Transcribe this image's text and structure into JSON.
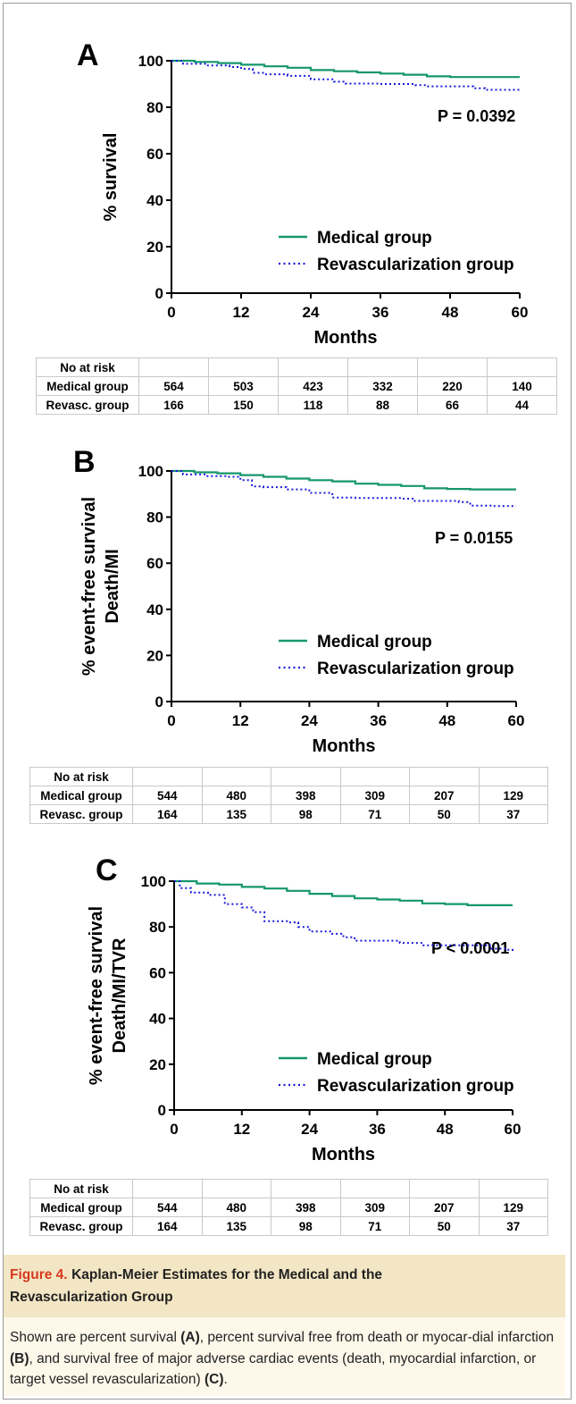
{
  "chart_data": [
    {
      "type": "line",
      "panel": "A",
      "ylabel": [
        "% survival"
      ],
      "xlabel": "Months",
      "xlim": [
        0,
        60
      ],
      "ylim": [
        0,
        100
      ],
      "xticks": [
        0,
        12,
        24,
        36,
        48,
        60
      ],
      "yticks": [
        0,
        20,
        40,
        60,
        80,
        100
      ],
      "annotation": "P  = 0.0392",
      "legend_position": "bottom-right",
      "series": [
        {
          "name": "Medical group",
          "color": "#15966b",
          "style": "solid",
          "x": [
            0,
            4,
            8,
            12,
            16,
            20,
            24,
            28,
            32,
            36,
            40,
            44,
            48,
            52,
            56,
            60
          ],
          "y": [
            100,
            99.5,
            99,
            98.3,
            97.6,
            97,
            96,
            95.5,
            95,
            94.5,
            94,
            93.3,
            93,
            93,
            93,
            93
          ]
        },
        {
          "name": "Revascularization group",
          "color": "#1a1adb",
          "style": "dotted",
          "x": [
            0,
            2,
            6,
            10,
            12,
            14,
            16,
            20,
            24,
            28,
            30,
            36,
            42,
            44,
            48,
            52,
            54,
            60
          ],
          "y": [
            100,
            98.7,
            98,
            97.3,
            96.5,
            94.8,
            94.2,
            93.5,
            92,
            91,
            90.2,
            90,
            89.5,
            89,
            89,
            88.2,
            87.5,
            87.5
          ]
        }
      ]
    },
    {
      "type": "line",
      "panel": "B",
      "ylabel": [
        "% event-free survival",
        "Death/MI"
      ],
      "xlabel": "Months",
      "xlim": [
        0,
        60
      ],
      "ylim": [
        0,
        100
      ],
      "xticks": [
        0,
        12,
        24,
        36,
        48,
        60
      ],
      "yticks": [
        0,
        20,
        40,
        60,
        80,
        100
      ],
      "annotation": "P  = 0.0155",
      "legend_position": "bottom-right",
      "series": [
        {
          "name": "Medical group",
          "color": "#15966b",
          "style": "solid",
          "x": [
            0,
            4,
            8,
            12,
            16,
            20,
            24,
            28,
            32,
            36,
            40,
            44,
            48,
            52,
            56,
            60
          ],
          "y": [
            100,
            99.4,
            99,
            98.2,
            97.5,
            96.7,
            96,
            95.5,
            94.5,
            94,
            93.5,
            92.5,
            92.2,
            92,
            92,
            92
          ]
        },
        {
          "name": "Revascularization group",
          "color": "#1a1adb",
          "style": "dotted",
          "x": [
            0,
            2,
            6,
            10,
            12,
            14,
            16,
            20,
            24,
            28,
            32,
            36,
            40,
            42,
            44,
            48,
            50,
            52,
            56,
            60
          ],
          "y": [
            100,
            98.5,
            97.8,
            97.5,
            96,
            93.3,
            93,
            92,
            90.5,
            88.5,
            88.3,
            88.3,
            88,
            87,
            87,
            87,
            86.5,
            85,
            84.8,
            84.8
          ]
        }
      ]
    },
    {
      "type": "line",
      "panel": "C",
      "ylabel": [
        "% event-free survival",
        "Death/MI/TVR"
      ],
      "xlabel": "Months",
      "xlim": [
        0,
        60
      ],
      "ylim": [
        0,
        100
      ],
      "xticks": [
        0,
        12,
        24,
        36,
        48,
        60
      ],
      "yticks": [
        0,
        20,
        40,
        60,
        80,
        100
      ],
      "annotation": "P  < 0.0001",
      "legend_position": "bottom-right",
      "series": [
        {
          "name": "Medical group",
          "color": "#15966b",
          "style": "solid",
          "x": [
            0,
            4,
            8,
            12,
            16,
            20,
            24,
            28,
            32,
            36,
            40,
            44,
            48,
            52,
            56,
            60
          ],
          "y": [
            100,
            99,
            98.5,
            97.5,
            96.8,
            95.8,
            94.5,
            93.5,
            92.5,
            92,
            91.5,
            90.3,
            90,
            89.5,
            89.5,
            89.5
          ]
        },
        {
          "name": "Revascularization group",
          "color": "#1a1adb",
          "style": "dotted",
          "x": [
            0,
            1,
            3,
            6,
            9,
            12,
            14,
            16,
            20,
            22,
            24,
            28,
            30,
            32,
            36,
            40,
            44,
            48,
            52,
            56,
            59,
            60
          ],
          "y": [
            100,
            97,
            95,
            94,
            90,
            88.5,
            86.5,
            82.5,
            82,
            80,
            78,
            77,
            75.5,
            74,
            74,
            73,
            72,
            72,
            72,
            70.5,
            70,
            68.5
          ]
        }
      ]
    }
  ],
  "risk_tables": [
    {
      "header": "No at risk",
      "rows": [
        {
          "label": "Medical group",
          "values": [
            "564",
            "503",
            "423",
            "332",
            "220",
            "140"
          ]
        },
        {
          "label": "Revasc. group",
          "values": [
            "166",
            "150",
            "118",
            "88",
            "66",
            "44"
          ]
        }
      ]
    },
    {
      "header": "No at risk",
      "rows": [
        {
          "label": "Medical group",
          "values": [
            "544",
            "480",
            "398",
            "309",
            "207",
            "129"
          ]
        },
        {
          "label": "Revasc. group",
          "values": [
            "164",
            "135",
            "98",
            "71",
            "50",
            "37"
          ]
        }
      ]
    },
    {
      "header": "No at risk",
      "rows": [
        {
          "label": "Medical group",
          "values": [
            "544",
            "480",
            "398",
            "309",
            "207",
            "129"
          ]
        },
        {
          "label": "Revasc. group",
          "values": [
            "164",
            "135",
            "98",
            "71",
            "50",
            "37"
          ]
        }
      ]
    }
  ],
  "caption": {
    "figure_label": "Figure 4.",
    "title_line1": "Kaplan-Meier Estimates for the Medical and the",
    "title_line2": "Revascularization Group",
    "body": [
      {
        "t": "Shown are percent survival ",
        "b": false
      },
      {
        "t": "(A)",
        "b": true
      },
      {
        "t": ", percent survival free from death or myocar-dial infarction ",
        "b": false
      },
      {
        "t": "(B)",
        "b": true
      },
      {
        "t": ", and survival free of major adverse cardiac events (death, myocardial infarction, or target vessel revascularization) ",
        "b": false
      },
      {
        "t": "(C)",
        "b": true
      },
      {
        "t": ".",
        "b": false
      }
    ]
  }
}
